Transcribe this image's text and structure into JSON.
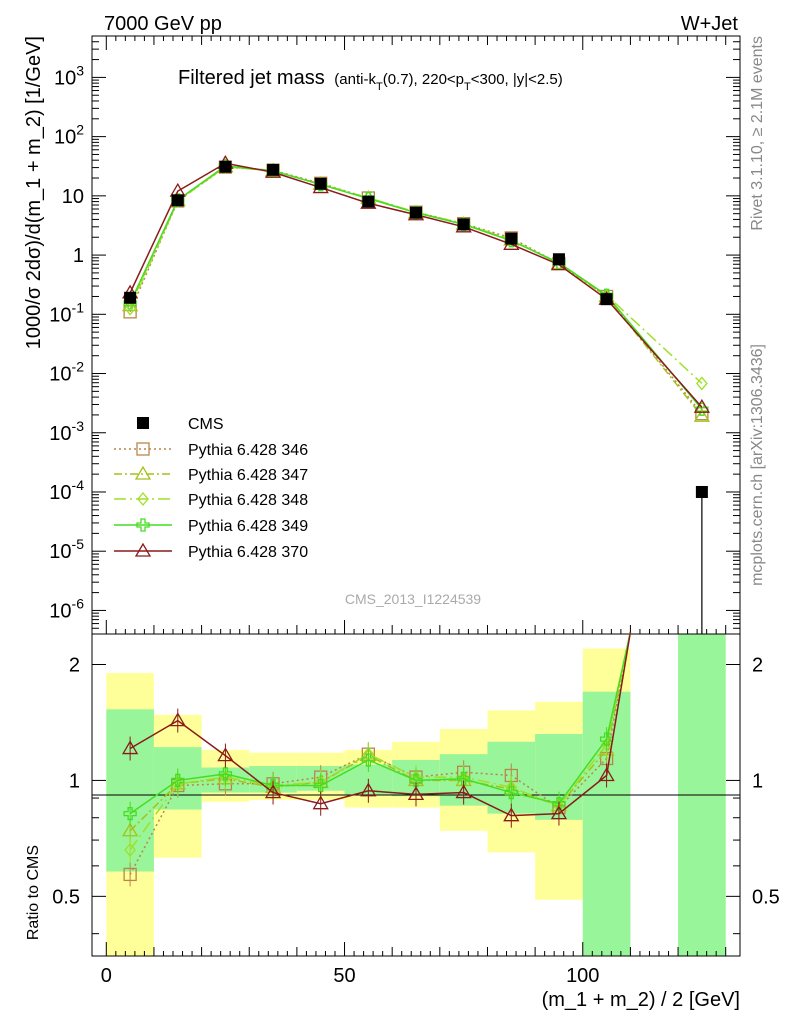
{
  "header": {
    "left": "7000 GeV pp",
    "right": "W+Jet"
  },
  "side": {
    "rivet": "Rivet 3.1.10, ≥ 2.1M events",
    "mcplots": "mcplots.cern.ch [arXiv:1306.3436]"
  },
  "watermark": "CMS_2013_I1224539",
  "title": {
    "main": "Filtered jet mass",
    "detail_a": "(anti-k",
    "detail_sub_t": "T",
    "detail_b": "(0.7), 220<p",
    "detail_sub_t2": "T",
    "detail_c": "<300, |y|<2.5)"
  },
  "axes": {
    "ylabel_top": "1000/σ 2dσ)/d(m_1 + m_2) [1/GeV]",
    "ylabel_ratio": "Ratio to CMS",
    "xlabel": "(m_1 + m_2) / 2 [GeV]",
    "x_ticks": [
      "0",
      "50",
      "100"
    ],
    "ratio_ticks": [
      "0.5",
      "1",
      "2"
    ]
  },
  "chart_data": [
    {
      "type": "line",
      "title": "Filtered jet mass",
      "xlabel": "(m_1 + m_2) / 2 [GeV]",
      "ylabel": "1000/σ 2dσ)/d(m_1 + m_2) [1/GeV]",
      "xlim": [
        -3,
        133
      ],
      "ylim": [
        4e-07,
        5000
      ],
      "yscale": "log",
      "x": [
        5,
        15,
        25,
        35,
        45,
        55,
        65,
        75,
        85,
        95,
        105,
        125
      ],
      "series": [
        {
          "name": "CMS",
          "color": "#000000",
          "marker": "square-filled",
          "values": [
            0.19,
            8.4,
            31,
            27.5,
            16,
            8,
            5.2,
            3.3,
            1.9,
            0.85,
            0.18,
            0.0001
          ]
        },
        {
          "name": "Pythia 6.428 346",
          "color": "#b8864b",
          "marker": "square-open",
          "dash": "dotted",
          "values": [
            0.11,
            8.2,
            30.5,
            27,
            16.3,
            9.2,
            5.3,
            3.4,
            1.95,
            0.72,
            0.2,
            0.0021
          ]
        },
        {
          "name": "Pythia 6.428 347",
          "color": "#a5c21a",
          "marker": "triangle-open",
          "dash": "dashdot",
          "values": [
            0.14,
            8.3,
            31,
            26.5,
            15.7,
            9.1,
            5.2,
            3.3,
            1.8,
            0.72,
            0.2,
            0.0019
          ]
        },
        {
          "name": "Pythia 6.428 348",
          "color": "#9ee02a",
          "marker": "diamond-open",
          "dash": "dashdot-long",
          "values": [
            0.125,
            8.2,
            31,
            26.5,
            15.8,
            9.3,
            5.3,
            3.4,
            1.82,
            0.72,
            0.21,
            0.0068
          ]
        },
        {
          "name": "Pythia 6.428 349",
          "color": "#44dd22",
          "marker": "cross-open",
          "dash": "solid",
          "values": [
            0.155,
            8.5,
            32,
            26.5,
            15.5,
            9.0,
            5.2,
            3.3,
            1.75,
            0.74,
            0.21,
            0.0025
          ]
        },
        {
          "name": "Pythia 6.428 370",
          "color": "#8b1a1a",
          "marker": "triangle-open",
          "dash": "solid",
          "values": [
            0.23,
            12.0,
            35.5,
            25.0,
            13.8,
            7.5,
            4.8,
            3.0,
            1.52,
            0.69,
            0.18,
            0.0027
          ]
        }
      ]
    },
    {
      "type": "line",
      "ylabel": "Ratio to CMS",
      "xlabel": "(m_1 + m_2) / 2 [GeV]",
      "xlim": [
        -3,
        133
      ],
      "ylim": [
        0.35,
        2.4
      ],
      "yscale": "log",
      "x": [
        5,
        15,
        25,
        35,
        45,
        55,
        65,
        75,
        85,
        95,
        105
      ],
      "bands": {
        "edges": [
          0,
          10,
          20,
          30,
          40,
          50,
          60,
          70,
          80,
          90,
          100,
          110,
          120,
          130
        ],
        "yellow_lo": [
          0.35,
          0.63,
          0.88,
          0.89,
          0.89,
          0.85,
          0.85,
          0.74,
          0.65,
          0.49,
          0.35,
          null,
          0.35
        ],
        "yellow_hi": [
          1.9,
          1.48,
          1.2,
          1.18,
          1.18,
          1.2,
          1.26,
          1.36,
          1.52,
          1.6,
          2.2,
          null,
          2.4
        ],
        "green_lo": [
          0.58,
          0.84,
          0.93,
          0.93,
          0.94,
          0.92,
          0.91,
          0.86,
          0.82,
          0.79,
          0.35,
          null,
          0.35
        ],
        "green_hi": [
          1.53,
          1.22,
          1.08,
          1.09,
          1.09,
          1.1,
          1.13,
          1.17,
          1.26,
          1.32,
          1.7,
          null,
          2.4
        ]
      },
      "series": [
        {
          "name": "Pythia 6.428 346",
          "color": "#b8864b",
          "values": [
            0.57,
            0.97,
            0.98,
            0.98,
            1.02,
            1.17,
            1.02,
            1.05,
            1.03,
            0.85,
            1.14
          ]
        },
        {
          "name": "Pythia 6.428 347",
          "color": "#a5c21a",
          "values": [
            0.74,
            0.98,
            1.01,
            0.96,
            0.99,
            1.16,
            1.0,
            1.0,
            0.95,
            0.86,
            1.2
          ]
        },
        {
          "name": "Pythia 6.428 348",
          "color": "#9ee02a",
          "values": [
            0.66,
            0.98,
            1.02,
            0.97,
            0.99,
            1.17,
            1.02,
            1.02,
            0.96,
            0.86,
            1.24
          ]
        },
        {
          "name": "Pythia 6.428 349",
          "color": "#44dd22",
          "values": [
            0.82,
            1.0,
            1.04,
            0.97,
            0.97,
            1.13,
            1.0,
            1.01,
            0.93,
            0.87,
            1.28
          ]
        },
        {
          "name": "Pythia 6.428 370",
          "color": "#8b1a1a",
          "values": [
            1.21,
            1.43,
            1.16,
            0.93,
            0.87,
            0.94,
            0.92,
            0.93,
            0.81,
            0.82,
            1.03
          ]
        }
      ]
    }
  ]
}
